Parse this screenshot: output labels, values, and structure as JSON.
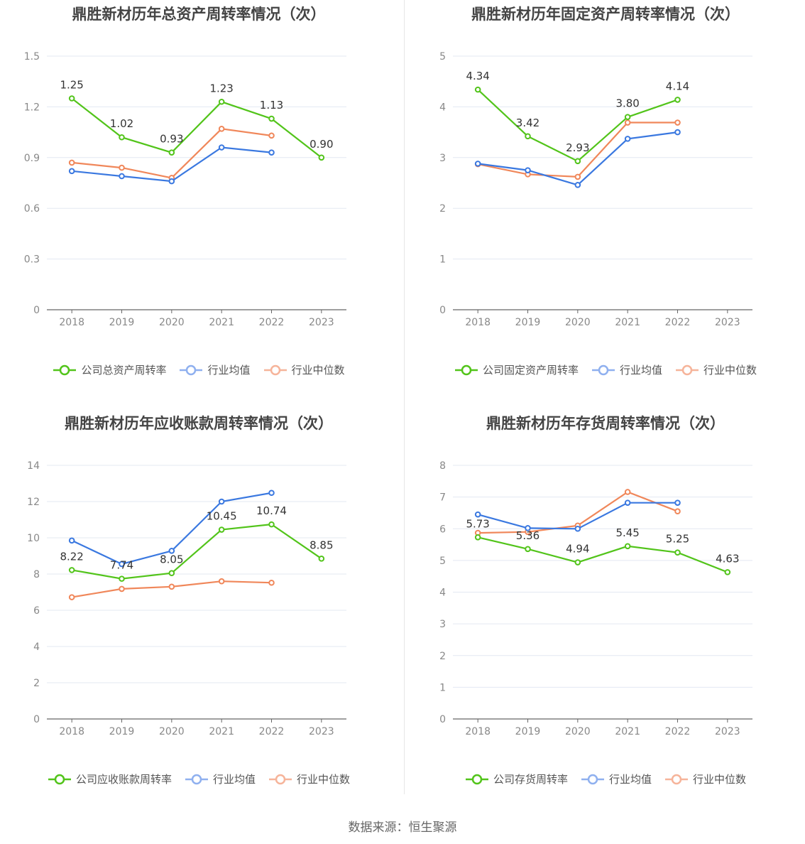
{
  "source": "数据来源：恒生聚源",
  "legend_common": {
    "avg": "行业均值",
    "median": "行业中位数"
  },
  "colors": {
    "company": "#52c41a",
    "avg": "#3a78e0",
    "median": "#f0875a",
    "grid": "#e3e8f2",
    "axis": "#666666"
  },
  "chart_data": [
    {
      "type": "line",
      "title": "鼎胜新材历年总资产周转率情况（次）",
      "categories": [
        "2018",
        "2019",
        "2020",
        "2021",
        "2022",
        "2023"
      ],
      "ylim": [
        0,
        1.5
      ],
      "yticks": [
        "0",
        "0.3",
        "0.6",
        "0.9",
        "1.2",
        "1.5"
      ],
      "legend": {
        "company": "公司总资产周转率"
      },
      "series": [
        {
          "name": "公司总资产周转率",
          "key": "company",
          "values": [
            1.25,
            1.02,
            0.93,
            1.23,
            1.13,
            0.9
          ],
          "labels": [
            "1.25",
            "1.02",
            "0.93",
            "1.23",
            "1.13",
            "0.90"
          ]
        },
        {
          "name": "行业均值",
          "key": "avg",
          "values": [
            0.82,
            0.79,
            0.76,
            0.96,
            0.93,
            null
          ]
        },
        {
          "name": "行业中位数",
          "key": "median",
          "values": [
            0.87,
            0.84,
            0.78,
            1.07,
            1.03,
            null
          ]
        }
      ]
    },
    {
      "type": "line",
      "title": "鼎胜新材历年固定资产周转率情况（次）",
      "categories": [
        "2018",
        "2019",
        "2020",
        "2021",
        "2022",
        "2023"
      ],
      "ylim": [
        0,
        5
      ],
      "yticks": [
        "0",
        "1",
        "2",
        "3",
        "4",
        "5"
      ],
      "legend": {
        "company": "公司固定资产周转率"
      },
      "series": [
        {
          "name": "公司固定资产周转率",
          "key": "company",
          "values": [
            4.34,
            3.42,
            2.93,
            3.8,
            4.14,
            null
          ],
          "labels": [
            "4.34",
            "3.42",
            "2.93",
            "3.80",
            "4.14",
            ""
          ]
        },
        {
          "name": "行业均值",
          "key": "avg",
          "values": [
            2.88,
            2.75,
            2.46,
            3.37,
            3.5,
            null
          ]
        },
        {
          "name": "行业中位数",
          "key": "median",
          "values": [
            2.87,
            2.67,
            2.62,
            3.69,
            3.69,
            null
          ]
        }
      ]
    },
    {
      "type": "line",
      "title": "鼎胜新材历年应收账款周转率情况（次）",
      "categories": [
        "2018",
        "2019",
        "2020",
        "2021",
        "2022",
        "2023"
      ],
      "ylim": [
        0,
        14
      ],
      "yticks": [
        "0",
        "2",
        "4",
        "6",
        "8",
        "10",
        "12",
        "14"
      ],
      "legend": {
        "company": "公司应收账款周转率"
      },
      "series": [
        {
          "name": "公司应收账款周转率",
          "key": "company",
          "values": [
            8.22,
            7.74,
            8.05,
            10.45,
            10.74,
            8.85
          ],
          "labels": [
            "8.22",
            "7.74",
            "8.05",
            "10.45",
            "10.74",
            "8.85"
          ]
        },
        {
          "name": "行业均值",
          "key": "avg",
          "values": [
            9.85,
            8.55,
            9.28,
            12.0,
            12.48,
            null
          ]
        },
        {
          "name": "行业中位数",
          "key": "median",
          "values": [
            6.72,
            7.18,
            7.3,
            7.6,
            7.52,
            null
          ]
        }
      ]
    },
    {
      "type": "line",
      "title": "鼎胜新材历年存货周转率情况（次）",
      "categories": [
        "2018",
        "2019",
        "2020",
        "2021",
        "2022",
        "2023"
      ],
      "ylim": [
        0,
        8
      ],
      "yticks": [
        "0",
        "1",
        "2",
        "3",
        "4",
        "5",
        "6",
        "7",
        "8"
      ],
      "legend": {
        "company": "公司存货周转率"
      },
      "series": [
        {
          "name": "公司存货周转率",
          "key": "company",
          "values": [
            5.73,
            5.36,
            4.94,
            5.45,
            5.25,
            4.63
          ],
          "labels": [
            "5.73",
            "5.36",
            "4.94",
            "5.45",
            "5.25",
            "4.63"
          ]
        },
        {
          "name": "行业均值",
          "key": "avg",
          "values": [
            6.45,
            6.02,
            6.0,
            6.82,
            6.82,
            null
          ]
        },
        {
          "name": "行业中位数",
          "key": "median",
          "values": [
            5.87,
            5.9,
            6.1,
            7.16,
            6.55,
            null
          ]
        }
      ]
    }
  ]
}
